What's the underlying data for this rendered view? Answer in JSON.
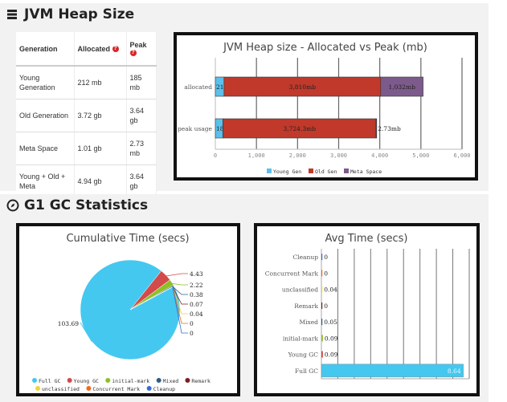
{
  "heap": {
    "title": "JVM Heap Size",
    "table": {
      "headers": [
        "Generation",
        "Allocated",
        "Peak"
      ],
      "rows": [
        {
          "generation": "Young Generation",
          "allocated": "212 mb",
          "peak": "185 mb"
        },
        {
          "generation": "Old Generation",
          "allocated": "3.72 gb",
          "peak": "3.64 gb"
        },
        {
          "generation": "Meta Space",
          "allocated": "1.01 gb",
          "peak": "2.73 mb"
        },
        {
          "generation": "Young + Old + Meta",
          "allocated": "4.94 gb",
          "peak": "3.64 gb"
        }
      ]
    }
  },
  "gc": {
    "title": "G1 GC Statistics"
  },
  "colors": {
    "young": "#5bc0eb",
    "old": "#c0392b",
    "meta": "#7d5a8c",
    "full_gc": "#44c8f0",
    "young_gc": "#d24a4a",
    "initial_mark": "#8fbf26",
    "mixed": "#2b5d8a",
    "remark": "#7a1f1f",
    "unclassified": "#f0d43a",
    "concurrent_mark": "#f06a1a",
    "cleanup": "#3a6ad8"
  },
  "chart_data": [
    {
      "type": "bar",
      "orientation": "horizontal",
      "stacked": true,
      "title": "JVM Heap size - Allocated vs Peak (mb)",
      "categories": [
        "allocated",
        "peak usage"
      ],
      "series": [
        {
          "name": "Young Gen",
          "values": [
            212,
            185
          ],
          "labels": [
            "212mb",
            "185mb"
          ]
        },
        {
          "name": "Old Gen",
          "values": [
            3810,
            3724.3
          ],
          "labels": [
            "3,810mb",
            "3,724.3mb"
          ]
        },
        {
          "name": "Meta Space",
          "values": [
            1032,
            2.73
          ],
          "labels": [
            "1,032mb",
            "2.73mb"
          ]
        }
      ],
      "xlim": [
        0,
        6000
      ],
      "xticks": [
        "0",
        "1,000",
        "2,000",
        "3,000",
        "4,000",
        "5,000",
        "6,000"
      ],
      "grid": true,
      "legend": "bottom"
    },
    {
      "type": "pie",
      "title": "Cumulative Time (secs)",
      "slices": [
        {
          "name": "Full GC",
          "value": 103.69,
          "label": "103.69"
        },
        {
          "name": "Young GC",
          "value": 4.43,
          "label": "4.43"
        },
        {
          "name": "initial-mark",
          "value": 2.22,
          "label": "2.22"
        },
        {
          "name": "Mixed",
          "value": 0.38,
          "label": "0.38"
        },
        {
          "name": "Remark",
          "value": 0.07,
          "label": "0.07"
        },
        {
          "name": "unclassified",
          "value": 0.04,
          "label": "0.04"
        },
        {
          "name": "Concurrent Mark",
          "value": 0,
          "label": "0"
        },
        {
          "name": "Cleanup",
          "value": 0,
          "label": "0"
        }
      ],
      "legend": "bottom"
    },
    {
      "type": "bar",
      "orientation": "horizontal",
      "title": "Avg Time (secs)",
      "categories": [
        "Cleanup",
        "Concurrent Mark",
        "unclassified",
        "Remark",
        "Mixed",
        "initial-mark",
        "Young GC",
        "Full GC"
      ],
      "values": [
        0,
        0,
        0.04,
        0,
        0.05,
        0.09,
        0.09,
        8.64
      ],
      "labels": [
        "0",
        "0",
        "0.04",
        "0",
        "0.05",
        "0.09",
        "0.09",
        "8.64"
      ],
      "xlim": [
        0,
        9
      ],
      "grid": true
    }
  ]
}
